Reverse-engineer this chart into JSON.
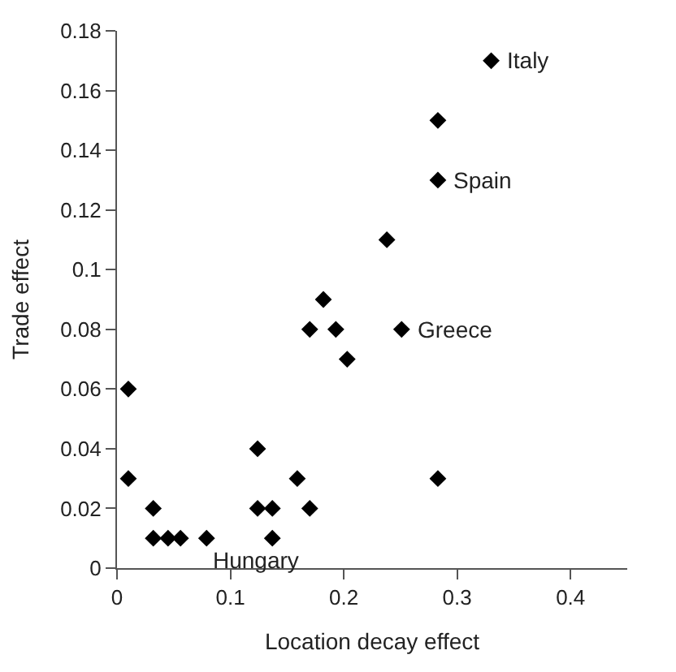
{
  "chart_data": {
    "type": "scatter",
    "xlabel": "Location decay effect",
    "ylabel": "Trade effect",
    "marker": "diamond",
    "x": [
      0.33,
      0.283,
      0.283,
      0.238,
      0.182,
      0.17,
      0.193,
      0.251,
      0.203,
      0.01,
      0.124,
      0.01,
      0.159,
      0.283,
      0.032,
      0.124,
      0.137,
      0.17,
      0.032,
      0.045,
      0.056,
      0.079,
      0.137
    ],
    "series": [
      {
        "color": "#000000",
        "values": [
          0.17,
          0.15,
          0.13,
          0.11,
          0.09,
          0.08,
          0.08,
          0.08,
          0.07,
          0.06,
          0.04,
          0.03,
          0.03,
          0.03,
          0.02,
          0.02,
          0.02,
          0.02,
          0.01,
          0.01,
          0.01,
          0.01,
          0.01
        ]
      }
    ],
    "xlim": [
      0,
      0.45
    ],
    "xticks": [
      0,
      0.1,
      0.2,
      0.3,
      0.4
    ],
    "ylim": [
      0,
      0.18
    ],
    "yticks": [
      0,
      0.02,
      0.04,
      0.06,
      0.08,
      0.1,
      0.12,
      0.14,
      0.16,
      0.18
    ],
    "annotations": [
      {
        "text": "Italy",
        "x": 0.33,
        "y": 0.17
      },
      {
        "text": "Spain",
        "x": 0.283,
        "y": 0.13
      },
      {
        "text": "Greece",
        "x": 0.251,
        "y": 0.08
      },
      {
        "text": "Hungary",
        "x": 0.137,
        "y": 0.01
      }
    ]
  }
}
